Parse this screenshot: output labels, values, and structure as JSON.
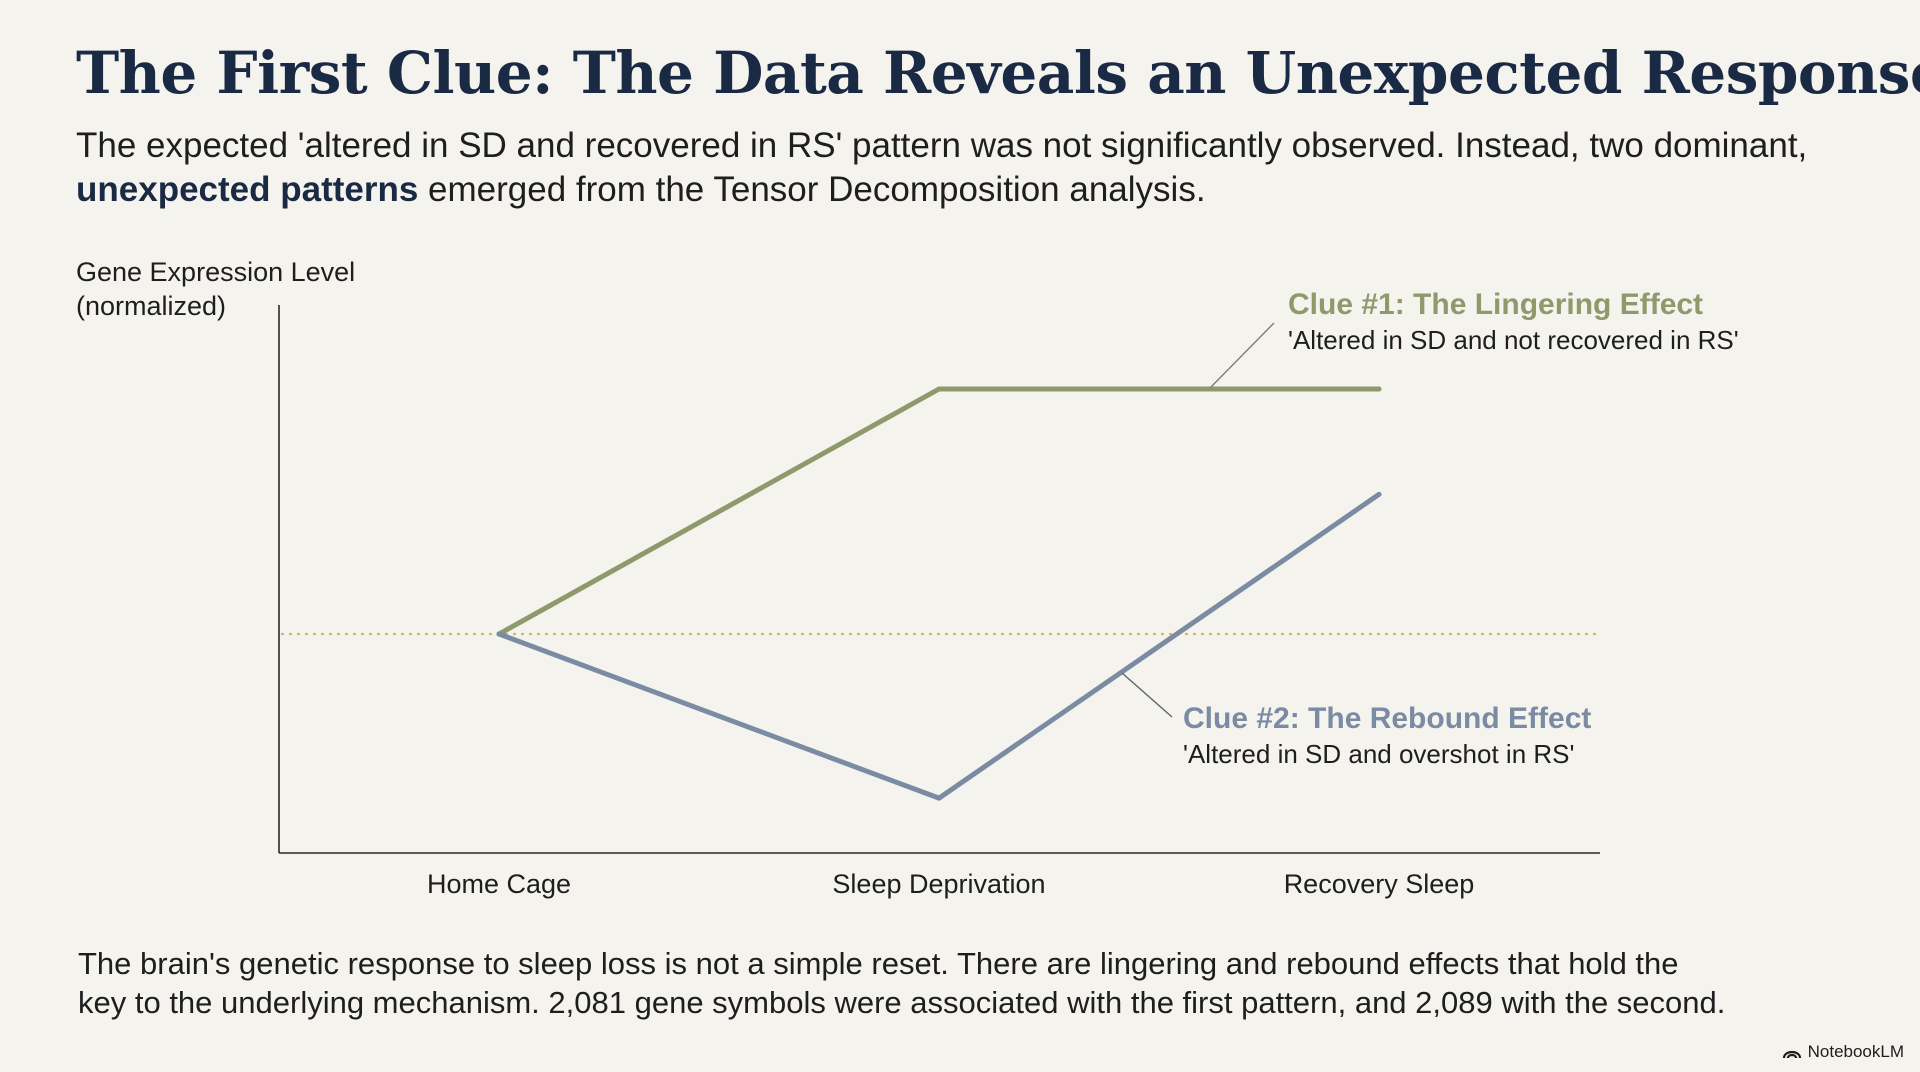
{
  "header": {
    "title": "The First Clue: The Data Reveals an Unexpected Response",
    "subtitle_part1": "The expected 'altered in SD and recovered in RS' pattern was not significantly observed. Instead, two dominant, ",
    "subtitle_emphasis": "unexpected patterns",
    "subtitle_part2": " emerged from the Tensor Decomposition analysis."
  },
  "chart_data": {
    "type": "line",
    "ylabel_line1": "Gene Expression Level",
    "ylabel_line2": "(normalized)",
    "xlabel": "",
    "categories": [
      "Home Cage",
      "Sleep Deprivation",
      "Recovery Sleep"
    ],
    "baseline": 0,
    "baseline_style": "dotted",
    "ylim": [
      -1,
      1
    ],
    "grid": false,
    "series": [
      {
        "key": "clue1",
        "values": [
          0,
          1,
          1
        ],
        "color": "#8e9a6b",
        "label_title": "Clue #1: The Lingering Effect",
        "label_desc": "'Altered in SD and not recovered in RS'"
      },
      {
        "key": "clue2",
        "values": [
          0,
          -0.67,
          0.57
        ],
        "color": "#7a8ba3",
        "label_title": "Clue #2: The Rebound Effect",
        "label_desc": "'Altered in SD and overshot in RS'"
      }
    ],
    "baseline_color": "#d9b95a"
  },
  "footer": {
    "text_line1": "The brain's genetic response to sleep loss is not a simple reset. There are lingering and rebound effects that hold the",
    "text_line2": "key to the underlying mechanism. 2,081 gene symbols were associated with the first pattern, and 2,089 with the second."
  },
  "brand": {
    "name": "NotebookLM",
    "icon": "notebooklm-logo-icon"
  }
}
